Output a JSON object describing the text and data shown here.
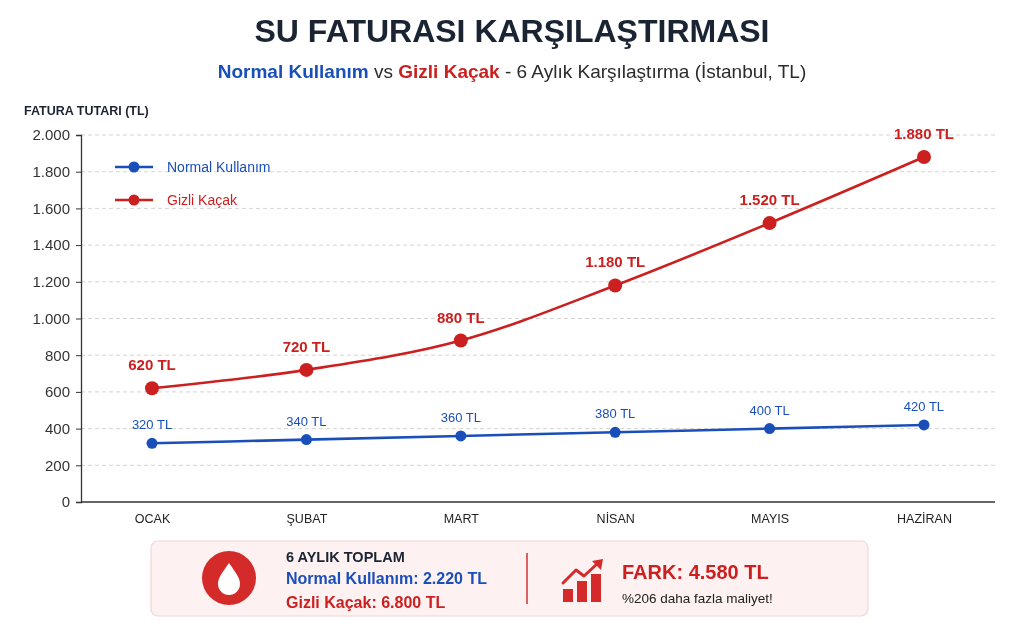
{
  "chart_data": {
    "type": "line",
    "title": "SU FATURASI KARŞILAŞTIRMASI",
    "subtitle": "Normal Kullanım vs Gizli Kaçak - 6 Aylık Karşılaştırma (İstanbul, TL)",
    "ylabel": "FATURA TUTARI (TL)",
    "categories": [
      "OCAK",
      "ŞUBAT",
      "MART",
      "NİSAN",
      "MAYIS",
      "HAZİRAN"
    ],
    "series": [
      {
        "name": "Normal Kullanım",
        "color": "#1a4fba",
        "values": [
          320,
          340,
          360,
          380,
          400,
          420
        ],
        "value_labels": [
          "320 TL",
          "340 TL",
          "360 TL",
          "380 TL",
          "400 TL",
          "420 TL"
        ]
      },
      {
        "name": "Gizli Kaçak",
        "color": "#cc1f1f",
        "values": [
          620,
          720,
          880,
          1180,
          1520,
          1880
        ],
        "value_labels": [
          "620 TL",
          "720 TL",
          "880 TL",
          "1.180 TL",
          "1.520 TL",
          "1.880 TL"
        ]
      }
    ],
    "ylim": [
      0,
      2000
    ],
    "yticks": [
      0,
      200,
      400,
      600,
      800,
      {
        "value": 1000,
        "label": "1.000"
      },
      {
        "value": 1200,
        "label": "1.200"
      },
      {
        "value": 1400,
        "label": "1.400"
      },
      {
        "value": 1600,
        "label": "1.600"
      },
      {
        "value": 1800,
        "label": "1.800"
      },
      {
        "value": 2000,
        "label": "2.000"
      }
    ],
    "grid": "y",
    "legend": "top left",
    "marker": "circle",
    "line_style": "solid",
    "annotations": [
      "6 AYLIK TOPLAM",
      "Normal Kullanım: 2.220 TL",
      "Gizli Kaçak: 6.800 TL",
      "FARK: 4.580 TL",
      "%206 daha fazla maliyet!"
    ]
  }
}
